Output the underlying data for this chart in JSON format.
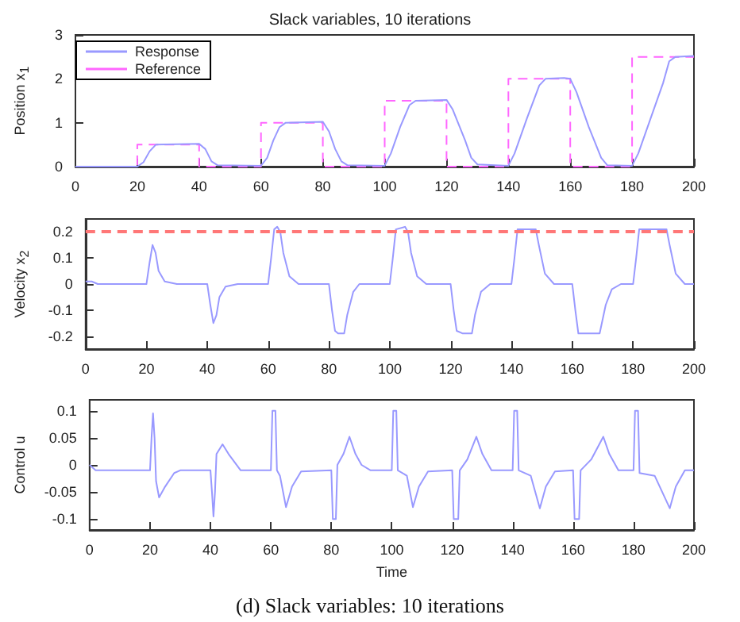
{
  "chart_data": [
    {
      "type": "line",
      "title": "Slack variables, 10 iterations",
      "ylabel": "Position x$_{1}$",
      "xlim": [
        0,
        200
      ],
      "xticks": [
        0,
        20,
        40,
        60,
        80,
        100,
        120,
        140,
        160,
        180,
        200
      ],
      "ylim": [
        0,
        3
      ],
      "yticks": [
        0,
        1,
        2,
        3
      ],
      "grid": false,
      "legend": "top left",
      "marker": "none",
      "series": [
        {
          "name": "Response",
          "color": "#9999ff",
          "line_style": "solid",
          "x": [
            0,
            20,
            22,
            24,
            26,
            40,
            42,
            44,
            46,
            60,
            62,
            64,
            66,
            68,
            80,
            82,
            84,
            86,
            88,
            100,
            102,
            105,
            108,
            110,
            120,
            122,
            126,
            128,
            130,
            140,
            142,
            146,
            150,
            152,
            158,
            160,
            162,
            166,
            170,
            172,
            180,
            182,
            186,
            190,
            192,
            194,
            200
          ],
          "values": [
            0,
            0,
            0.1,
            0.35,
            0.5,
            0.52,
            0.4,
            0.12,
            0.03,
            0.02,
            0.2,
            0.6,
            0.9,
            1.0,
            1.02,
            0.8,
            0.4,
            0.12,
            0.03,
            0.02,
            0.3,
            0.9,
            1.4,
            1.5,
            1.52,
            1.3,
            0.6,
            0.2,
            0.05,
            0.02,
            0.3,
            1.1,
            1.85,
            2.0,
            2.02,
            2.0,
            1.7,
            0.9,
            0.2,
            0.03,
            0.02,
            0.3,
            1.1,
            1.9,
            2.4,
            2.5,
            2.52
          ]
        },
        {
          "name": "Reference",
          "color": "#ff66ff",
          "type": "step",
          "line_style": "dashed",
          "x": [
            0,
            20,
            40,
            60,
            80,
            100,
            120,
            140,
            160,
            180,
            200
          ],
          "values": [
            0,
            0.5,
            0,
            1,
            0,
            1.5,
            0,
            2,
            0,
            2.5,
            2.5
          ]
        }
      ]
    },
    {
      "type": "line",
      "ylabel": "Velocity x$_{2}$",
      "xlim": [
        0,
        200
      ],
      "xticks": [
        0,
        20,
        40,
        60,
        80,
        100,
        120,
        140,
        160,
        180,
        200
      ],
      "ylim": [
        -0.25,
        0.25
      ],
      "yticks": [
        -0.2,
        -0.1,
        0,
        0.1,
        0.2
      ],
      "grid": false,
      "marker": "none",
      "ref_lines": [
        {
          "axis": "y",
          "value": 0.2,
          "color": "#ff7777",
          "line_style": "dashed"
        }
      ],
      "series": [
        {
          "color": "#9999ff",
          "line_style": "solid",
          "x": [
            0,
            2,
            4,
            20,
            21,
            22,
            23,
            24,
            26,
            30,
            40,
            41,
            42,
            43,
            44,
            46,
            50,
            60,
            61,
            62,
            63,
            64,
            65,
            67,
            70,
            80,
            81,
            82,
            83,
            85,
            86,
            88,
            90,
            100,
            101,
            102,
            105,
            106,
            107,
            109,
            112,
            120,
            121,
            122,
            124,
            127,
            128,
            130,
            133,
            140,
            141,
            142,
            148,
            149,
            151,
            154,
            160,
            161,
            162,
            169,
            171,
            173,
            176,
            180,
            181,
            182,
            191,
            192,
            194,
            197,
            200
          ],
          "values": [
            0.01,
            0.01,
            0,
            0,
            0.08,
            0.15,
            0.12,
            0.05,
            0.01,
            0,
            0,
            -0.08,
            -0.15,
            -0.12,
            -0.05,
            -0.01,
            0,
            0,
            0.1,
            0.21,
            0.22,
            0.2,
            0.12,
            0.03,
            0,
            0,
            -0.1,
            -0.18,
            -0.19,
            -0.19,
            -0.12,
            -0.03,
            0,
            0,
            0.1,
            0.21,
            0.22,
            0.2,
            0.12,
            0.03,
            0,
            0,
            -0.1,
            -0.18,
            -0.19,
            -0.19,
            -0.12,
            -0.03,
            0,
            0,
            0.1,
            0.21,
            0.21,
            0.15,
            0.04,
            0,
            0,
            -0.1,
            -0.19,
            -0.19,
            -0.08,
            -0.02,
            0,
            0,
            0.1,
            0.21,
            0.21,
            0.15,
            0.04,
            0,
            0
          ]
        }
      ]
    },
    {
      "type": "line",
      "ylabel": "Control u",
      "xlabel": "Time",
      "xlim": [
        0,
        200
      ],
      "xticks": [
        0,
        20,
        40,
        60,
        80,
        100,
        120,
        140,
        160,
        180,
        200
      ],
      "ylim": [
        -0.12,
        0.12
      ],
      "yticks": [
        -0.1,
        -0.05,
        0,
        0.05,
        0.1
      ],
      "grid": false,
      "marker": "none",
      "annotations": [
        "(d) Slack variables: 10 iterations"
      ],
      "series": [
        {
          "color": "#9999ff",
          "line_style": "solid",
          "x": [
            0,
            2,
            20,
            20.5,
            21,
            21.5,
            22,
            23,
            25,
            28,
            30,
            40,
            40.5,
            41,
            41.5,
            42,
            44,
            46,
            48,
            50,
            60,
            60.5,
            61.5,
            62,
            63,
            65,
            67,
            70,
            80,
            80.5,
            81.5,
            82,
            84,
            86,
            88,
            90,
            93,
            100,
            100.5,
            101.5,
            102,
            105,
            107,
            109,
            112,
            120,
            120.5,
            122,
            122.5,
            125,
            128,
            130,
            133,
            140,
            140.5,
            141.5,
            142,
            146,
            149,
            151,
            154,
            160,
            160.5,
            162,
            162.5,
            166,
            170,
            172,
            175,
            180,
            180.5,
            181.5,
            182,
            187,
            192,
            194,
            197,
            200
          ],
          "values": [
            0,
            -0.01,
            -0.01,
            0.05,
            0.095,
            0.05,
            -0.03,
            -0.06,
            -0.04,
            -0.015,
            -0.01,
            -0.01,
            -0.05,
            -0.095,
            -0.05,
            0.02,
            0.038,
            0.02,
            0.005,
            -0.01,
            -0.01,
            0.1,
            0.1,
            -0.01,
            -0.02,
            -0.078,
            -0.04,
            -0.012,
            -0.01,
            -0.1,
            -0.1,
            0,
            0.02,
            0.052,
            0.02,
            0,
            -0.01,
            -0.01,
            0.1,
            0.1,
            -0.01,
            -0.02,
            -0.078,
            -0.04,
            -0.012,
            -0.01,
            -0.1,
            -0.1,
            -0.01,
            0.01,
            0.052,
            0.02,
            -0.01,
            -0.01,
            0.1,
            0.1,
            -0.01,
            -0.02,
            -0.08,
            -0.04,
            -0.012,
            -0.01,
            -0.1,
            -0.1,
            -0.01,
            0.01,
            0.052,
            0.02,
            -0.01,
            -0.01,
            0.1,
            0.1,
            -0.015,
            -0.02,
            -0.08,
            -0.04,
            -0.01,
            -0.01
          ]
        }
      ]
    }
  ]
}
